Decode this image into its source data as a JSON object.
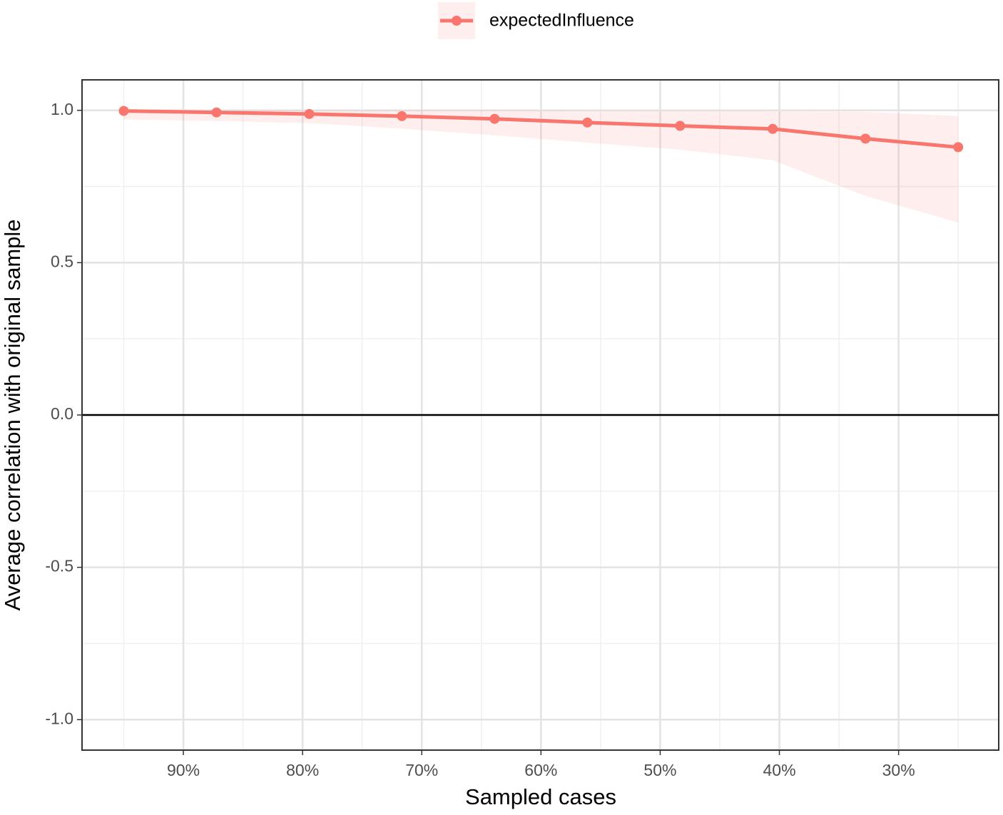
{
  "chart_data": {
    "type": "line",
    "x_label": "Sampled cases",
    "y_label": "Average correlation with original sample",
    "x": [
      95,
      87.22,
      79.44,
      71.67,
      63.89,
      56.11,
      48.33,
      40.56,
      32.78,
      25
    ],
    "series": [
      {
        "name": "expectedInfluence",
        "color": "#F8766D",
        "values": [
          0.998,
          0.993,
          0.988,
          0.981,
          0.972,
          0.96,
          0.949,
          0.939,
          0.907,
          0.879
        ],
        "lower": [
          0.97,
          0.965,
          0.958,
          0.94,
          0.918,
          0.894,
          0.871,
          0.836,
          0.719,
          0.632
        ],
        "upper": [
          1.0,
          1.0,
          1.0,
          1.0,
          1.0,
          0.998,
          0.998,
          0.997,
          0.995,
          0.981
        ]
      }
    ],
    "xlim": [
      98.5,
      21.6
    ],
    "ylim": [
      -1.1,
      1.1
    ],
    "xticks": [
      {
        "value": 90,
        "label": "90%"
      },
      {
        "value": 80,
        "label": "80%"
      },
      {
        "value": 70,
        "label": "70%"
      },
      {
        "value": 60,
        "label": "60%"
      },
      {
        "value": 50,
        "label": "50%"
      },
      {
        "value": 40,
        "label": "40%"
      },
      {
        "value": 30,
        "label": "30%"
      }
    ],
    "yticks": [
      {
        "value": 1,
        "label": "1.0"
      },
      {
        "value": 0.5,
        "label": "0.5"
      },
      {
        "value": 0,
        "label": "0.0"
      },
      {
        "value": -0.5,
        "label": "-0.5"
      },
      {
        "value": -1,
        "label": "-1.0"
      }
    ],
    "hline": 0,
    "grid": true,
    "legend": "top"
  }
}
